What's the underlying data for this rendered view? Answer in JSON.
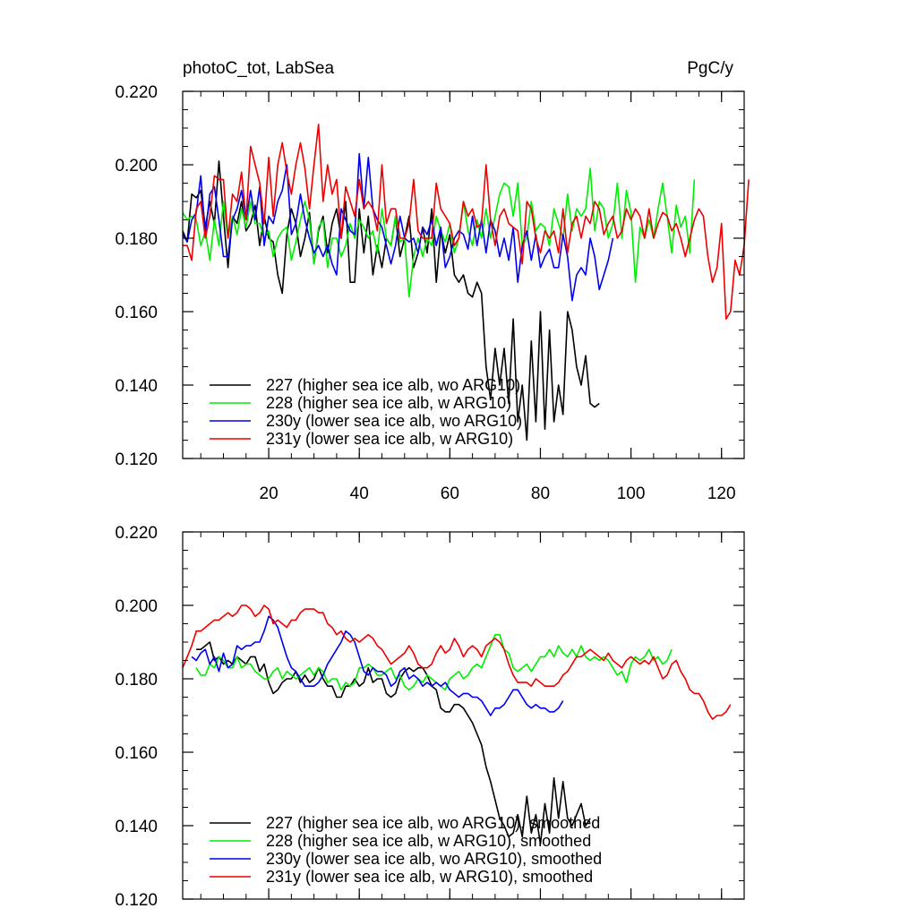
{
  "colors": {
    "227": "#000000",
    "228": "#00ee00",
    "230y": "#0000ee",
    "231y": "#ee0000"
  },
  "chart_data": [
    {
      "type": "line",
      "title": "photoC_tot, LabSea",
      "units": "PgC/y",
      "xlim": [
        1,
        125
      ],
      "ylim": [
        0.12,
        0.22
      ],
      "yticks": [
        "0.120",
        "0.140",
        "0.160",
        "0.180",
        "0.200",
        "0.220"
      ],
      "xticks": [
        "20",
        "40",
        "60",
        "80",
        "100",
        "120"
      ],
      "legend": [
        "227 (higher sea ice alb, wo ARG10)",
        "228 (higher sea ice alb, w ARG10)",
        "230y (lower sea ice alb, wo ARG10)",
        "231y (lower sea ice alb, w ARG10)"
      ],
      "series": [
        {
          "key": "227",
          "x_start": 1,
          "values": [
            0.182,
            0.179,
            0.192,
            0.191,
            0.193,
            0.183,
            0.19,
            0.184,
            0.201,
            0.186,
            0.172,
            0.186,
            0.184,
            0.19,
            0.182,
            0.184,
            0.189,
            0.178,
            0.186,
            0.18,
            0.179,
            0.17,
            0.165,
            0.181,
            0.188,
            0.184,
            0.175,
            0.18,
            0.187,
            0.173,
            0.182,
            0.186,
            0.176,
            0.184,
            0.188,
            0.18,
            0.19,
            0.168,
            0.168,
            0.188,
            0.176,
            0.186,
            0.17,
            0.178,
            0.172,
            0.18,
            0.178,
            0.186,
            0.175,
            0.18,
            0.186,
            0.172,
            0.176,
            0.183,
            0.176,
            0.188,
            0.168,
            0.182,
            0.176,
            0.181,
            0.17,
            0.168,
            0.17,
            0.165,
            0.164,
            0.168,
            0.165,
            0.145,
            0.136,
            0.15,
            0.14,
            0.15,
            0.135,
            0.158,
            0.13,
            0.14,
            0.125,
            0.152,
            0.13,
            0.16,
            0.128,
            0.155,
            0.13,
            0.14,
            0.132,
            0.16,
            0.155,
            0.145,
            0.14,
            0.148,
            0.135,
            0.134,
            0.135
          ]
        },
        {
          "key": "228",
          "x_start": 1,
          "values": [
            0.187,
            0.185,
            0.186,
            0.185,
            0.178,
            0.182,
            0.174,
            0.185,
            0.178,
            0.19,
            0.18,
            0.186,
            0.181,
            0.188,
            0.183,
            0.19,
            0.184,
            0.184,
            0.18,
            0.182,
            0.175,
            0.18,
            0.182,
            0.183,
            0.174,
            0.179,
            0.185,
            0.19,
            0.185,
            0.173,
            0.183,
            0.185,
            0.172,
            0.18,
            0.18,
            0.175,
            0.178,
            0.184,
            0.18,
            0.185,
            0.183,
            0.18,
            0.182,
            0.176,
            0.188,
            0.18,
            0.178,
            0.186,
            0.179,
            0.18,
            0.164,
            0.175,
            0.18,
            0.175,
            0.18,
            0.178,
            0.186,
            0.182,
            0.179,
            0.184,
            0.176,
            0.18,
            0.19,
            0.182,
            0.178,
            0.185,
            0.18,
            0.188,
            0.18,
            0.186,
            0.192,
            0.195,
            0.194,
            0.186,
            0.195,
            0.178,
            0.18,
            0.19,
            0.182,
            0.184,
            0.183,
            0.178,
            0.188,
            0.184,
            0.18,
            0.192,
            0.182,
            0.188,
            0.186,
            0.188,
            0.199,
            0.182,
            0.19,
            0.188,
            0.18,
            0.184,
            0.195,
            0.18,
            0.193,
            0.187,
            0.168,
            0.183,
            0.18,
            0.185,
            0.18,
            0.188,
            0.195,
            0.186,
            0.176,
            0.189,
            0.183,
            0.186,
            0.176,
            0.196
          ]
        },
        {
          "key": "230y",
          "x_start": 1,
          "values": [
            0.181,
            0.179,
            0.185,
            0.187,
            0.197,
            0.181,
            0.192,
            0.194,
            0.185,
            0.175,
            0.175,
            0.185,
            0.188,
            0.193,
            0.185,
            0.193,
            0.185,
            0.194,
            0.178,
            0.186,
            0.184,
            0.19,
            0.193,
            0.2,
            0.181,
            0.184,
            0.192,
            0.185,
            0.18,
            0.176,
            0.178,
            0.175,
            0.178,
            0.173,
            0.17,
            0.188,
            0.185,
            0.182,
            0.181,
            0.203,
            0.188,
            0.202,
            0.188,
            0.185,
            0.183,
            0.178,
            0.173,
            0.178,
            0.186,
            0.18,
            0.179,
            0.18,
            0.176,
            0.183,
            0.181,
            0.185,
            0.178,
            0.183,
            0.172,
            0.175,
            0.18,
            0.182,
            0.181,
            0.177,
            0.186,
            0.178,
            0.185,
            0.176,
            0.185,
            0.182,
            0.175,
            0.18,
            0.174,
            0.183,
            0.168,
            0.178,
            0.182,
            0.174,
            0.181,
            0.172,
            0.175,
            0.177,
            0.172,
            0.172,
            0.181,
            0.175,
            0.163,
            0.17,
            0.172,
            0.17,
            0.18,
            0.175,
            0.166,
            0.17,
            0.174,
            0.18
          ]
        },
        {
          "key": "231y",
          "x_start": 1,
          "values": [
            0.178,
            0.178,
            0.174,
            0.188,
            0.19,
            0.18,
            0.186,
            0.197,
            0.196,
            0.196,
            0.18,
            0.192,
            0.19,
            0.198,
            0.185,
            0.205,
            0.2,
            0.195,
            0.184,
            0.202,
            0.186,
            0.2,
            0.206,
            0.198,
            0.192,
            0.2,
            0.206,
            0.199,
            0.188,
            0.2,
            0.211,
            0.19,
            0.2,
            0.192,
            0.196,
            0.18,
            0.194,
            0.19,
            0.186,
            0.196,
            0.188,
            0.19,
            0.188,
            0.182,
            0.2,
            0.184,
            0.188,
            0.188,
            0.18,
            0.18,
            0.184,
            0.196,
            0.182,
            0.18,
            0.18,
            0.18,
            0.195,
            0.188,
            0.186,
            0.184,
            0.178,
            0.18,
            0.19,
            0.186,
            0.188,
            0.183,
            0.184,
            0.2,
            0.185,
            0.178,
            0.186,
            0.188,
            0.184,
            0.183,
            0.182,
            0.173,
            0.19,
            0.188,
            0.18,
            0.176,
            0.182,
            0.18,
            0.182,
            0.176,
            0.188,
            0.176,
            0.184,
            0.186,
            0.18,
            0.186,
            0.184,
            0.19,
            0.188,
            0.181,
            0.184,
            0.186,
            0.18,
            0.182,
            0.188,
            0.185,
            0.188,
            0.186,
            0.18,
            0.188,
            0.18,
            0.184,
            0.187,
            0.186,
            0.182,
            0.184,
            0.18,
            0.175,
            0.18,
            0.185,
            0.188,
            0.186,
            0.175,
            0.168,
            0.172,
            0.184,
            0.158,
            0.16,
            0.174,
            0.17,
            0.178,
            0.196
          ]
        }
      ]
    },
    {
      "type": "line",
      "xlim": [
        1,
        125
      ],
      "ylim": [
        0.12,
        0.22
      ],
      "yticks": [
        "0.120",
        "0.140",
        "0.160",
        "0.180",
        "0.200",
        "0.220"
      ],
      "legend": [
        "227 (higher sea ice alb, wo ARG10), smoothed",
        "228 (higher sea ice alb, w ARG10), smoothed",
        "230y (lower sea ice alb, wo ARG10), smoothed",
        "231y (lower sea ice alb, w ARG10), smoothed"
      ],
      "series": [
        {
          "key": "227",
          "x_start": 4,
          "values": [
            0.188,
            0.188,
            0.189,
            0.19,
            0.185,
            0.186,
            0.184,
            0.185,
            0.184,
            0.186,
            0.185,
            0.184,
            0.186,
            0.186,
            0.182,
            0.184,
            0.179,
            0.176,
            0.177,
            0.179,
            0.18,
            0.18,
            0.182,
            0.179,
            0.181,
            0.179,
            0.18,
            0.183,
            0.18,
            0.178,
            0.178,
            0.175,
            0.175,
            0.178,
            0.178,
            0.18,
            0.178,
            0.179,
            0.183,
            0.179,
            0.18,
            0.18,
            0.176,
            0.175,
            0.176,
            0.18,
            0.182,
            0.183,
            0.182,
            0.183,
            0.183,
            0.181,
            0.178,
            0.177,
            0.172,
            0.171,
            0.171,
            0.173,
            0.173,
            0.172,
            0.17,
            0.168,
            0.165,
            0.162,
            0.156,
            0.152,
            0.147,
            0.142,
            0.14,
            0.137,
            0.138,
            0.143,
            0.137,
            0.148,
            0.138,
            0.143,
            0.135,
            0.146,
            0.138,
            0.153,
            0.142,
            0.152,
            0.142,
            0.14,
            0.143,
            0.146,
            0.14,
            0.142
          ]
        },
        {
          "key": "228",
          "x_start": 4,
          "values": [
            0.183,
            0.181,
            0.181,
            0.184,
            0.183,
            0.186,
            0.185,
            0.183,
            0.183,
            0.186,
            0.183,
            0.184,
            0.184,
            0.182,
            0.181,
            0.18,
            0.18,
            0.182,
            0.183,
            0.18,
            0.182,
            0.181,
            0.18,
            0.181,
            0.182,
            0.183,
            0.181,
            0.183,
            0.182,
            0.179,
            0.18,
            0.18,
            0.177,
            0.179,
            0.178,
            0.179,
            0.183,
            0.183,
            0.184,
            0.183,
            0.181,
            0.181,
            0.182,
            0.183,
            0.18,
            0.181,
            0.178,
            0.177,
            0.178,
            0.18,
            0.179,
            0.181,
            0.18,
            0.179,
            0.178,
            0.177,
            0.18,
            0.181,
            0.182,
            0.18,
            0.181,
            0.183,
            0.184,
            0.183,
            0.186,
            0.189,
            0.192,
            0.192,
            0.188,
            0.187,
            0.183,
            0.182,
            0.183,
            0.184,
            0.182,
            0.184,
            0.186,
            0.186,
            0.188,
            0.186,
            0.189,
            0.187,
            0.186,
            0.188,
            0.186,
            0.189,
            0.186,
            0.185,
            0.186,
            0.185,
            0.186,
            0.185,
            0.183,
            0.181,
            0.182,
            0.179,
            0.184,
            0.186,
            0.185,
            0.186,
            0.188,
            0.185,
            0.186,
            0.184,
            0.185,
            0.188
          ]
        },
        {
          "key": "230y",
          "x_start": 3,
          "values": [
            0.186,
            0.185,
            0.187,
            0.188,
            0.184,
            0.186,
            0.182,
            0.187,
            0.183,
            0.184,
            0.189,
            0.188,
            0.189,
            0.189,
            0.19,
            0.19,
            0.193,
            0.197,
            0.196,
            0.194,
            0.19,
            0.186,
            0.183,
            0.182,
            0.18,
            0.178,
            0.178,
            0.178,
            0.179,
            0.181,
            0.184,
            0.186,
            0.188,
            0.19,
            0.193,
            0.192,
            0.19,
            0.186,
            0.182,
            0.181,
            0.183,
            0.182,
            0.182,
            0.181,
            0.178,
            0.179,
            0.182,
            0.183,
            0.18,
            0.181,
            0.18,
            0.178,
            0.179,
            0.178,
            0.179,
            0.178,
            0.179,
            0.177,
            0.176,
            0.175,
            0.176,
            0.176,
            0.175,
            0.175,
            0.174,
            0.172,
            0.17,
            0.172,
            0.172,
            0.173,
            0.175,
            0.177,
            0.177,
            0.175,
            0.173,
            0.172,
            0.173,
            0.172,
            0.172,
            0.171,
            0.171,
            0.172,
            0.174
          ]
        },
        {
          "key": "231y",
          "x_start": 1,
          "values": [
            0.183,
            0.186,
            0.189,
            0.193,
            0.193,
            0.194,
            0.195,
            0.196,
            0.196,
            0.197,
            0.198,
            0.197,
            0.198,
            0.2,
            0.2,
            0.199,
            0.197,
            0.198,
            0.2,
            0.199,
            0.195,
            0.196,
            0.195,
            0.194,
            0.196,
            0.196,
            0.198,
            0.199,
            0.199,
            0.199,
            0.198,
            0.198,
            0.195,
            0.194,
            0.192,
            0.193,
            0.191,
            0.19,
            0.191,
            0.19,
            0.191,
            0.192,
            0.191,
            0.189,
            0.188,
            0.186,
            0.184,
            0.185,
            0.186,
            0.187,
            0.189,
            0.187,
            0.184,
            0.183,
            0.183,
            0.184,
            0.187,
            0.189,
            0.187,
            0.188,
            0.191,
            0.189,
            0.186,
            0.188,
            0.189,
            0.188,
            0.186,
            0.189,
            0.19,
            0.191,
            0.19,
            0.188,
            0.184,
            0.181,
            0.179,
            0.179,
            0.179,
            0.178,
            0.18,
            0.179,
            0.178,
            0.178,
            0.178,
            0.179,
            0.181,
            0.182,
            0.184,
            0.186,
            0.186,
            0.187,
            0.188,
            0.187,
            0.186,
            0.185,
            0.187,
            0.185,
            0.184,
            0.183,
            0.185,
            0.186,
            0.185,
            0.184,
            0.185,
            0.184,
            0.186,
            0.183,
            0.18,
            0.181,
            0.184,
            0.185,
            0.182,
            0.18,
            0.177,
            0.176,
            0.176,
            0.174,
            0.171,
            0.169,
            0.17,
            0.17,
            0.171,
            0.173
          ]
        }
      ]
    }
  ]
}
